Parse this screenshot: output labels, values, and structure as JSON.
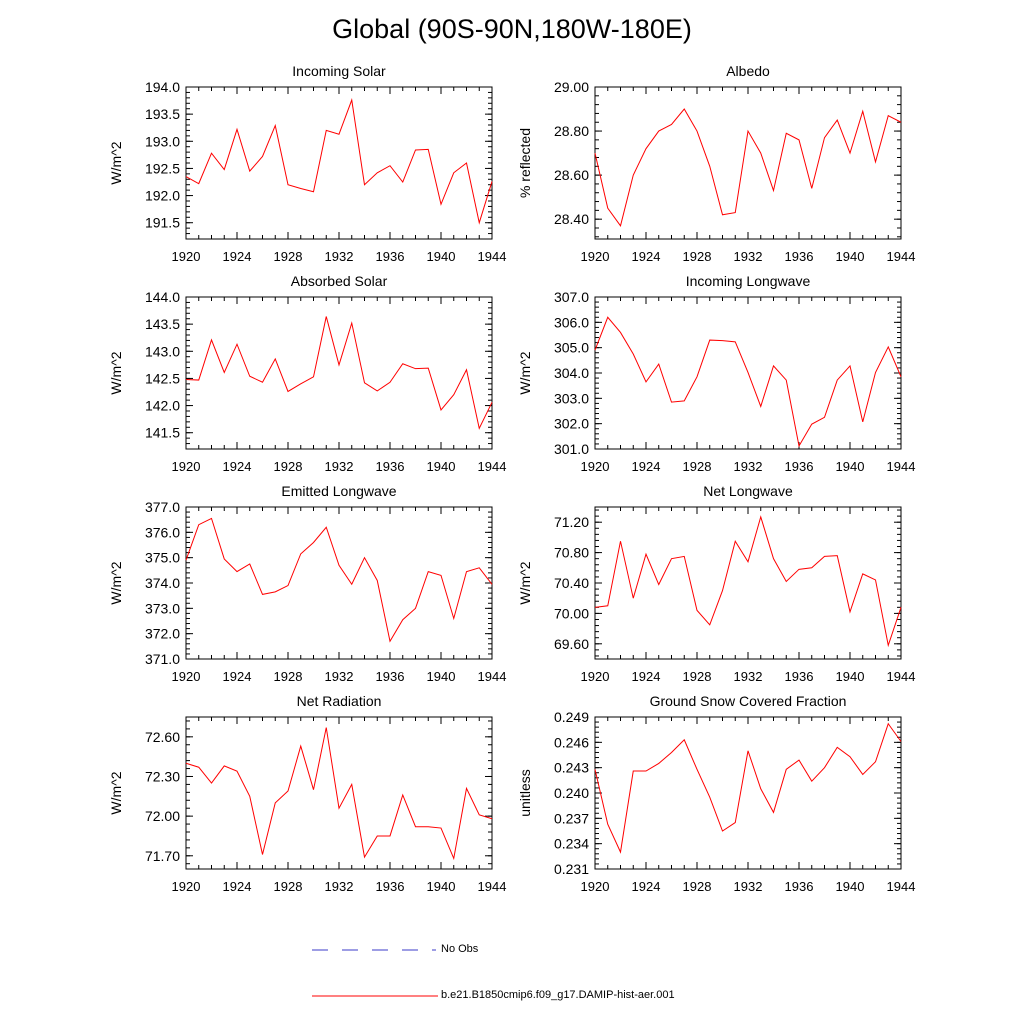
{
  "title": "Global (90S-90N,180W-180E)",
  "legend": [
    {
      "label": "No Obs",
      "color": "#3b3bc8",
      "style": "dashed"
    },
    {
      "label": "b.e21.B1850cmip6.f09_g17.DAMIP-hist-aer.001",
      "color": "#ff0000",
      "style": "solid"
    }
  ],
  "chart_data": [
    {
      "type": "line",
      "title": "Incoming Solar",
      "ylabel": "W/m^2",
      "xlim": [
        1920,
        1944
      ],
      "ylim": [
        191.2,
        194.0
      ],
      "yticks": [
        191.5,
        192.0,
        192.5,
        193.0,
        193.5,
        194.0
      ],
      "ytick_labels": [
        "191.5",
        "192.0",
        "192.5",
        "193.0",
        "193.5",
        "194.0"
      ],
      "xticks": [
        1920,
        1924,
        1928,
        1932,
        1936,
        1940,
        1944
      ],
      "x": [
        1920,
        1921,
        1922,
        1923,
        1924,
        1925,
        1926,
        1927,
        1928,
        1929,
        1930,
        1931,
        1932,
        1933,
        1934,
        1935,
        1936,
        1937,
        1938,
        1939,
        1940,
        1941,
        1942,
        1943,
        1944
      ],
      "values": [
        192.35,
        192.22,
        192.78,
        192.48,
        193.22,
        192.45,
        192.72,
        193.29,
        192.2,
        192.13,
        192.07,
        193.2,
        193.13,
        193.76,
        192.2,
        192.42,
        192.55,
        192.25,
        192.84,
        192.85,
        191.84,
        192.42,
        192.6,
        191.5,
        192.26
      ],
      "color": "#ff0000"
    },
    {
      "type": "line",
      "title": "Albedo",
      "ylabel": "% reflected",
      "xlim": [
        1920,
        1944
      ],
      "ylim": [
        28.31,
        29.0
      ],
      "yticks": [
        28.4,
        28.6,
        28.8,
        29.0
      ],
      "ytick_labels": [
        "28.40",
        "28.60",
        "28.80",
        "29.00"
      ],
      "xticks": [
        1920,
        1924,
        1928,
        1932,
        1936,
        1940,
        1944
      ],
      "x": [
        1920,
        1921,
        1922,
        1923,
        1924,
        1925,
        1926,
        1927,
        1928,
        1929,
        1930,
        1931,
        1932,
        1933,
        1934,
        1935,
        1936,
        1937,
        1938,
        1939,
        1940,
        1941,
        1942,
        1943,
        1944
      ],
      "values": [
        28.7,
        28.45,
        28.37,
        28.6,
        28.72,
        28.8,
        28.83,
        28.9,
        28.8,
        28.64,
        28.42,
        28.43,
        28.8,
        28.7,
        28.53,
        28.79,
        28.76,
        28.54,
        28.77,
        28.85,
        28.7,
        28.89,
        28.66,
        28.87,
        28.84
      ],
      "color": "#ff0000"
    },
    {
      "type": "line",
      "title": "Absorbed Solar",
      "ylabel": "W/m^2",
      "xlim": [
        1920,
        1944
      ],
      "ylim": [
        141.2,
        144.0
      ],
      "yticks": [
        141.5,
        142.0,
        142.5,
        143.0,
        143.5,
        144.0
      ],
      "ytick_labels": [
        "141.5",
        "142.0",
        "142.5",
        "143.0",
        "143.5",
        "144.0"
      ],
      "xticks": [
        1920,
        1924,
        1928,
        1932,
        1936,
        1940,
        1944
      ],
      "x": [
        1920,
        1921,
        1922,
        1923,
        1924,
        1925,
        1926,
        1927,
        1928,
        1929,
        1930,
        1931,
        1932,
        1933,
        1934,
        1935,
        1936,
        1937,
        1938,
        1939,
        1940,
        1941,
        1942,
        1943,
        1944
      ],
      "values": [
        142.48,
        142.47,
        143.21,
        142.61,
        143.13,
        142.54,
        142.43,
        142.86,
        142.26,
        142.4,
        142.53,
        143.64,
        142.75,
        143.52,
        142.42,
        142.27,
        142.43,
        142.77,
        142.68,
        142.69,
        141.92,
        142.2,
        142.66,
        141.58,
        142.06
      ],
      "color": "#ff0000"
    },
    {
      "type": "line",
      "title": "Incoming Longwave",
      "ylabel": "W/m^2",
      "xlim": [
        1920,
        1944
      ],
      "ylim": [
        301.0,
        307.0
      ],
      "yticks": [
        301.0,
        302.0,
        303.0,
        304.0,
        305.0,
        306.0,
        307.0
      ],
      "ytick_labels": [
        "301.0",
        "302.0",
        "303.0",
        "304.0",
        "305.0",
        "306.0",
        "307.0"
      ],
      "xticks": [
        1920,
        1924,
        1928,
        1932,
        1936,
        1940,
        1944
      ],
      "x": [
        1920,
        1921,
        1922,
        1923,
        1924,
        1925,
        1926,
        1927,
        1928,
        1929,
        1930,
        1931,
        1932,
        1933,
        1934,
        1935,
        1936,
        1937,
        1938,
        1939,
        1940,
        1941,
        1942,
        1943,
        1944
      ],
      "values": [
        304.9,
        306.2,
        305.6,
        304.75,
        303.65,
        304.35,
        302.85,
        302.9,
        303.85,
        305.3,
        305.28,
        305.23,
        304.02,
        302.68,
        304.28,
        303.72,
        301.12,
        301.98,
        302.25,
        303.72,
        304.28,
        302.07,
        304.02,
        305.03,
        303.85
      ],
      "color": "#ff0000"
    },
    {
      "type": "line",
      "title": "Emitted Longwave",
      "ylabel": "W/m^2",
      "xlim": [
        1920,
        1944
      ],
      "ylim": [
        371.0,
        377.0
      ],
      "yticks": [
        371.0,
        372.0,
        373.0,
        374.0,
        375.0,
        376.0,
        377.0
      ],
      "ytick_labels": [
        "371.0",
        "372.0",
        "373.0",
        "374.0",
        "375.0",
        "376.0",
        "377.0"
      ],
      "xticks": [
        1920,
        1924,
        1928,
        1932,
        1936,
        1940,
        1944
      ],
      "x": [
        1920,
        1921,
        1922,
        1923,
        1924,
        1925,
        1926,
        1927,
        1928,
        1929,
        1930,
        1931,
        1932,
        1933,
        1934,
        1935,
        1936,
        1937,
        1938,
        1939,
        1940,
        1941,
        1942,
        1943,
        1944
      ],
      "values": [
        374.9,
        376.3,
        376.55,
        374.95,
        374.45,
        374.75,
        373.55,
        373.65,
        373.9,
        375.15,
        375.6,
        376.2,
        374.7,
        373.95,
        375.0,
        374.1,
        371.7,
        372.55,
        373.0,
        374.45,
        374.3,
        372.6,
        374.45,
        374.6,
        373.95
      ],
      "color": "#ff0000"
    },
    {
      "type": "line",
      "title": "Net Longwave",
      "ylabel": "W/m^2",
      "xlim": [
        1920,
        1944
      ],
      "ylim": [
        69.4,
        71.4
      ],
      "yticks": [
        69.6,
        70.0,
        70.4,
        70.8,
        71.2
      ],
      "ytick_labels": [
        "69.60",
        "70.00",
        "70.40",
        "70.80",
        "71.20"
      ],
      "xticks": [
        1920,
        1924,
        1928,
        1932,
        1936,
        1940,
        1944
      ],
      "x": [
        1920,
        1921,
        1922,
        1923,
        1924,
        1925,
        1926,
        1927,
        1928,
        1929,
        1930,
        1931,
        1932,
        1933,
        1934,
        1935,
        1936,
        1937,
        1938,
        1939,
        1940,
        1941,
        1942,
        1943,
        1944
      ],
      "values": [
        70.08,
        70.1,
        70.95,
        70.2,
        70.78,
        70.38,
        70.72,
        70.75,
        70.04,
        69.85,
        70.3,
        70.95,
        70.68,
        71.27,
        70.72,
        70.42,
        70.58,
        70.6,
        70.75,
        70.76,
        70.02,
        70.52,
        70.44,
        69.58,
        70.08
      ],
      "color": "#ff0000"
    },
    {
      "type": "line",
      "title": "Net Radiation",
      "ylabel": "W/m^2",
      "xlim": [
        1920,
        1944
      ],
      "ylim": [
        71.6,
        72.75
      ],
      "yticks": [
        71.7,
        72.0,
        72.3,
        72.6
      ],
      "ytick_labels": [
        "71.70",
        "72.00",
        "72.30",
        "72.60"
      ],
      "xticks": [
        1920,
        1924,
        1928,
        1932,
        1936,
        1940,
        1944
      ],
      "x": [
        1920,
        1921,
        1922,
        1923,
        1924,
        1925,
        1926,
        1927,
        1928,
        1929,
        1930,
        1931,
        1932,
        1933,
        1934,
        1935,
        1936,
        1937,
        1938,
        1939,
        1940,
        1941,
        1942,
        1943,
        1944
      ],
      "values": [
        72.4,
        72.37,
        72.25,
        72.38,
        72.34,
        72.15,
        71.71,
        72.1,
        72.19,
        72.53,
        72.2,
        72.67,
        72.06,
        72.24,
        71.69,
        71.85,
        71.85,
        72.16,
        71.92,
        71.92,
        71.91,
        71.68,
        72.21,
        72.01,
        71.98
      ],
      "color": "#ff0000"
    },
    {
      "type": "line",
      "title": "Ground Snow Covered Fraction",
      "ylabel": "unitless",
      "xlim": [
        1920,
        1944
      ],
      "ylim": [
        0.231,
        0.249
      ],
      "yticks": [
        0.231,
        0.234,
        0.237,
        0.24,
        0.243,
        0.246,
        0.249
      ],
      "ytick_labels": [
        "0.231",
        "0.234",
        "0.237",
        "0.240",
        "0.243",
        "0.246",
        "0.249"
      ],
      "xticks": [
        1920,
        1924,
        1928,
        1932,
        1936,
        1940,
        1944
      ],
      "x": [
        1920,
        1921,
        1922,
        1923,
        1924,
        1925,
        1926,
        1927,
        1928,
        1929,
        1930,
        1931,
        1932,
        1933,
        1934,
        1935,
        1936,
        1937,
        1938,
        1939,
        1940,
        1941,
        1942,
        1943,
        1944
      ],
      "values": [
        0.2428,
        0.2363,
        0.233,
        0.2426,
        0.2426,
        0.2435,
        0.2448,
        0.2463,
        0.2428,
        0.2395,
        0.2355,
        0.2365,
        0.245,
        0.2405,
        0.2377,
        0.2428,
        0.2439,
        0.2414,
        0.243,
        0.2454,
        0.2443,
        0.2422,
        0.2437,
        0.2482,
        0.2461
      ],
      "color": "#ff0000"
    }
  ]
}
